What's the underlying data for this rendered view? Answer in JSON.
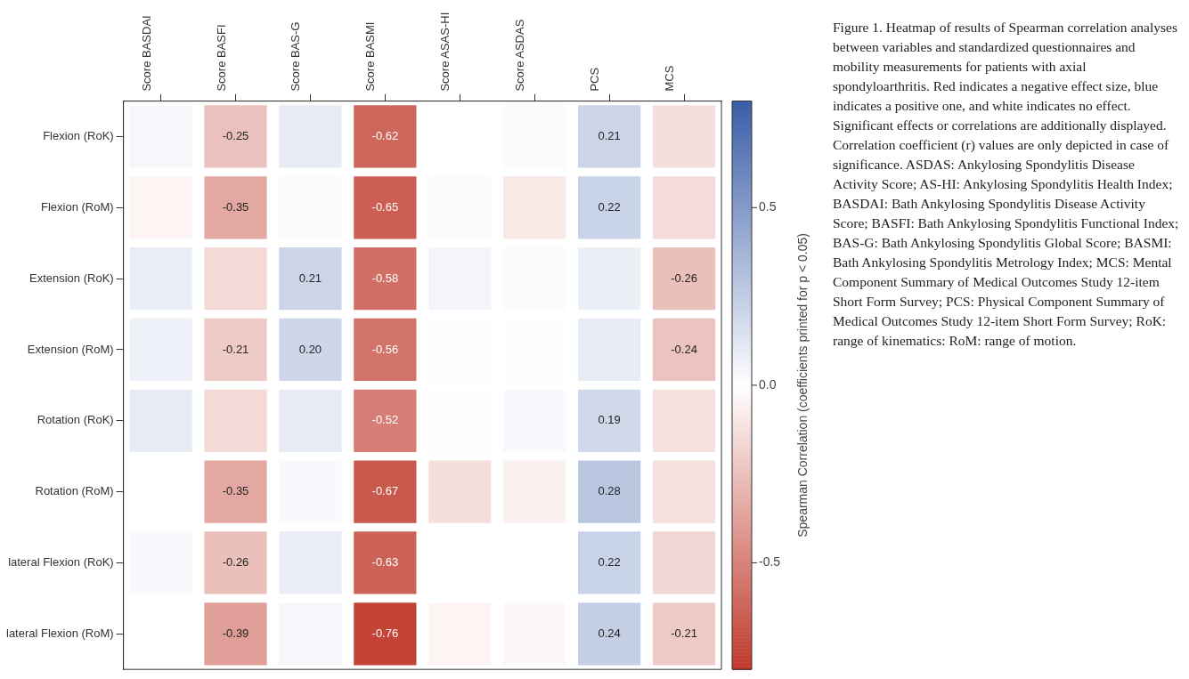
{
  "chart_data": {
    "type": "heatmap",
    "categories": [
      "Score BASDAI",
      "Score BASFI",
      "Score BAS-G",
      "Score BASMI",
      "Score ASAS-HI",
      "Score ASDAS",
      "PCS",
      "MCS"
    ],
    "y_categories": [
      "Flexion (RoK)",
      "Flexion (RoM)",
      "Extension (RoK)",
      "Extension (RoM)",
      "Rotation (RoK)",
      "Rotation (RoM)",
      "lateral Flexion (RoK)",
      "lateral Flexion (RoM)"
    ],
    "cells": [
      [
        0.04,
        -0.25,
        0.1,
        -0.62,
        0.0,
        0.02,
        0.21,
        -0.13
      ],
      [
        -0.04,
        -0.35,
        0.02,
        -0.65,
        -0.02,
        -0.09,
        0.22,
        -0.14
      ],
      [
        0.09,
        -0.15,
        0.21,
        -0.58,
        0.05,
        0.02,
        0.08,
        -0.26
      ],
      [
        0.07,
        -0.21,
        0.2,
        -0.56,
        0.01,
        0.01,
        0.1,
        -0.24
      ],
      [
        0.1,
        -0.15,
        0.1,
        -0.52,
        -0.01,
        0.03,
        0.19,
        -0.12
      ],
      [
        0.0,
        -0.35,
        0.03,
        -0.67,
        -0.13,
        -0.06,
        0.28,
        -0.12
      ],
      [
        0.03,
        -0.26,
        0.09,
        -0.63,
        0.0,
        0.0,
        0.22,
        -0.16
      ],
      [
        0.0,
        -0.39,
        0.04,
        -0.76,
        -0.04,
        -0.03,
        0.24,
        -0.21
      ]
    ],
    "cell_labels": [
      [
        null,
        "-0.25",
        null,
        "-0.62",
        null,
        null,
        "0.21",
        null
      ],
      [
        null,
        "-0.35",
        null,
        "-0.65",
        null,
        null,
        "0.22",
        null
      ],
      [
        null,
        null,
        "0.21",
        "-0.58",
        null,
        null,
        null,
        "-0.26"
      ],
      [
        null,
        "-0.21",
        "0.20",
        "-0.56",
        null,
        null,
        null,
        "-0.24"
      ],
      [
        null,
        null,
        null,
        "-0.52",
        null,
        null,
        "0.19",
        null
      ],
      [
        null,
        "-0.35",
        null,
        "-0.67",
        null,
        null,
        "0.28",
        null
      ],
      [
        null,
        "-0.26",
        null,
        "-0.63",
        null,
        null,
        "0.22",
        null
      ],
      [
        null,
        "-0.39",
        null,
        "-0.76",
        null,
        null,
        "0.24",
        "-0.21"
      ]
    ],
    "clim": [
      -0.8,
      0.8
    ],
    "cticks": [
      0.5,
      {
        "value": 0,
        "label": "0.0"
      },
      -0.5
    ],
    "clabel": "Spearman Correlation (coefficients printed for p < 0.05)",
    "annotations": [
      "Figure 1. Heatmap of results of Spearman correlation analyses between variables and standardized questionnaires and mobility measurements for patients with axial spondyloarthritis. Red indicates a negative effect size, blue indicates a positive one, and white indicates no effect. Significant effects or correlations are additionally displayed. Correlation coefficient (r) values are only depicted in case of significance. ASDAS: Ankylosing Spondylitis Disease Activity Score; AS-HI: Ankylosing Spondylitis Health Index; BASDAI: Bath Ankylosing Spondylitis Disease Activity Score; BASFI: Bath Ankylosing Spondylitis Functional Index; BAS-G: Bath Ankylosing Spondylitis Global Score; BASMI: Bath Ankylosing Spondylitis Metrology Index; MCS: Mental Component Summary of Medical Outcomes Study 12-item Short Form Survey; PCS: Physical Component Summary of Medical Outcomes Study 12-item Short Form Survey; RoK: range of kinematics: RoM: range of motion."
    ]
  }
}
